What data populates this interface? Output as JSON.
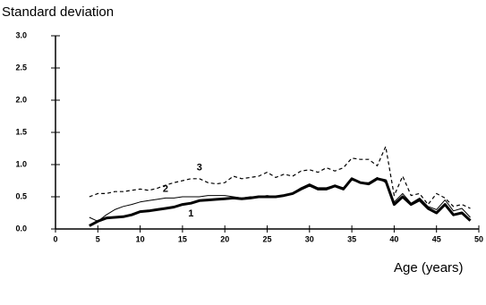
{
  "chart_data": {
    "type": "line",
    "ylabel": "Standard deviation",
    "xlabel": "Age (years)",
    "x": [
      4,
      5,
      6,
      7,
      8,
      9,
      10,
      11,
      12,
      13,
      14,
      15,
      16,
      17,
      18,
      19,
      20,
      21,
      22,
      23,
      24,
      25,
      26,
      27,
      28,
      29,
      30,
      31,
      32,
      33,
      34,
      35,
      36,
      37,
      38,
      39,
      40,
      41,
      42,
      43,
      44,
      45,
      46,
      47,
      48,
      49
    ],
    "series": [
      {
        "name": "1",
        "color": "#000000",
        "width": 3,
        "dash": false,
        "values": [
          0.05,
          0.12,
          0.17,
          0.18,
          0.19,
          0.22,
          0.27,
          0.28,
          0.3,
          0.32,
          0.34,
          0.38,
          0.4,
          0.44,
          0.45,
          0.46,
          0.47,
          0.48,
          0.47,
          0.48,
          0.5,
          0.5,
          0.5,
          0.52,
          0.55,
          0.62,
          0.68,
          0.62,
          0.62,
          0.67,
          0.62,
          0.78,
          0.72,
          0.7,
          0.78,
          0.75,
          0.38,
          0.5,
          0.38,
          0.45,
          0.32,
          0.25,
          0.38,
          0.22,
          0.25,
          0.13
        ]
      },
      {
        "name": "2",
        "color": "#000000",
        "width": 1,
        "dash": false,
        "values": [
          0.18,
          0.12,
          0.22,
          0.3,
          0.35,
          0.38,
          0.42,
          0.44,
          0.46,
          0.48,
          0.48,
          0.5,
          0.5,
          0.5,
          0.52,
          0.52,
          0.52,
          0.5,
          0.48,
          0.5,
          0.5,
          0.52,
          0.5,
          0.52,
          0.56,
          0.64,
          0.7,
          0.64,
          0.64,
          0.68,
          0.64,
          0.76,
          0.72,
          0.72,
          0.8,
          0.72,
          0.42,
          0.55,
          0.4,
          0.48,
          0.35,
          0.3,
          0.45,
          0.28,
          0.32,
          0.18
        ]
      },
      {
        "name": "3",
        "color": "#000000",
        "width": 1.2,
        "dash": true,
        "values": [
          0.5,
          0.55,
          0.55,
          0.58,
          0.58,
          0.6,
          0.62,
          0.6,
          0.63,
          0.68,
          0.72,
          0.75,
          0.78,
          0.78,
          0.72,
          0.7,
          0.72,
          0.82,
          0.78,
          0.8,
          0.82,
          0.88,
          0.8,
          0.85,
          0.82,
          0.9,
          0.92,
          0.88,
          0.95,
          0.9,
          0.95,
          1.1,
          1.08,
          1.08,
          0.98,
          1.28,
          0.52,
          0.82,
          0.52,
          0.55,
          0.38,
          0.55,
          0.48,
          0.35,
          0.38,
          0.32
        ]
      }
    ],
    "xlim": [
      0,
      50
    ],
    "xticks": [
      0,
      5,
      10,
      15,
      20,
      25,
      30,
      35,
      40,
      45,
      50
    ],
    "ylim": [
      0,
      3
    ],
    "yticks": [
      {
        "value": 0,
        "label": "0.0"
      },
      {
        "value": 0.5,
        "label": "0.5"
      },
      {
        "value": 1,
        "label": "1.0"
      },
      {
        "value": 1.5,
        "label": "1.5"
      },
      {
        "value": 2,
        "label": "2.0"
      },
      {
        "value": 2.5,
        "label": "2.5"
      },
      {
        "value": 3,
        "label": "3.0"
      }
    ],
    "grid": false
  }
}
